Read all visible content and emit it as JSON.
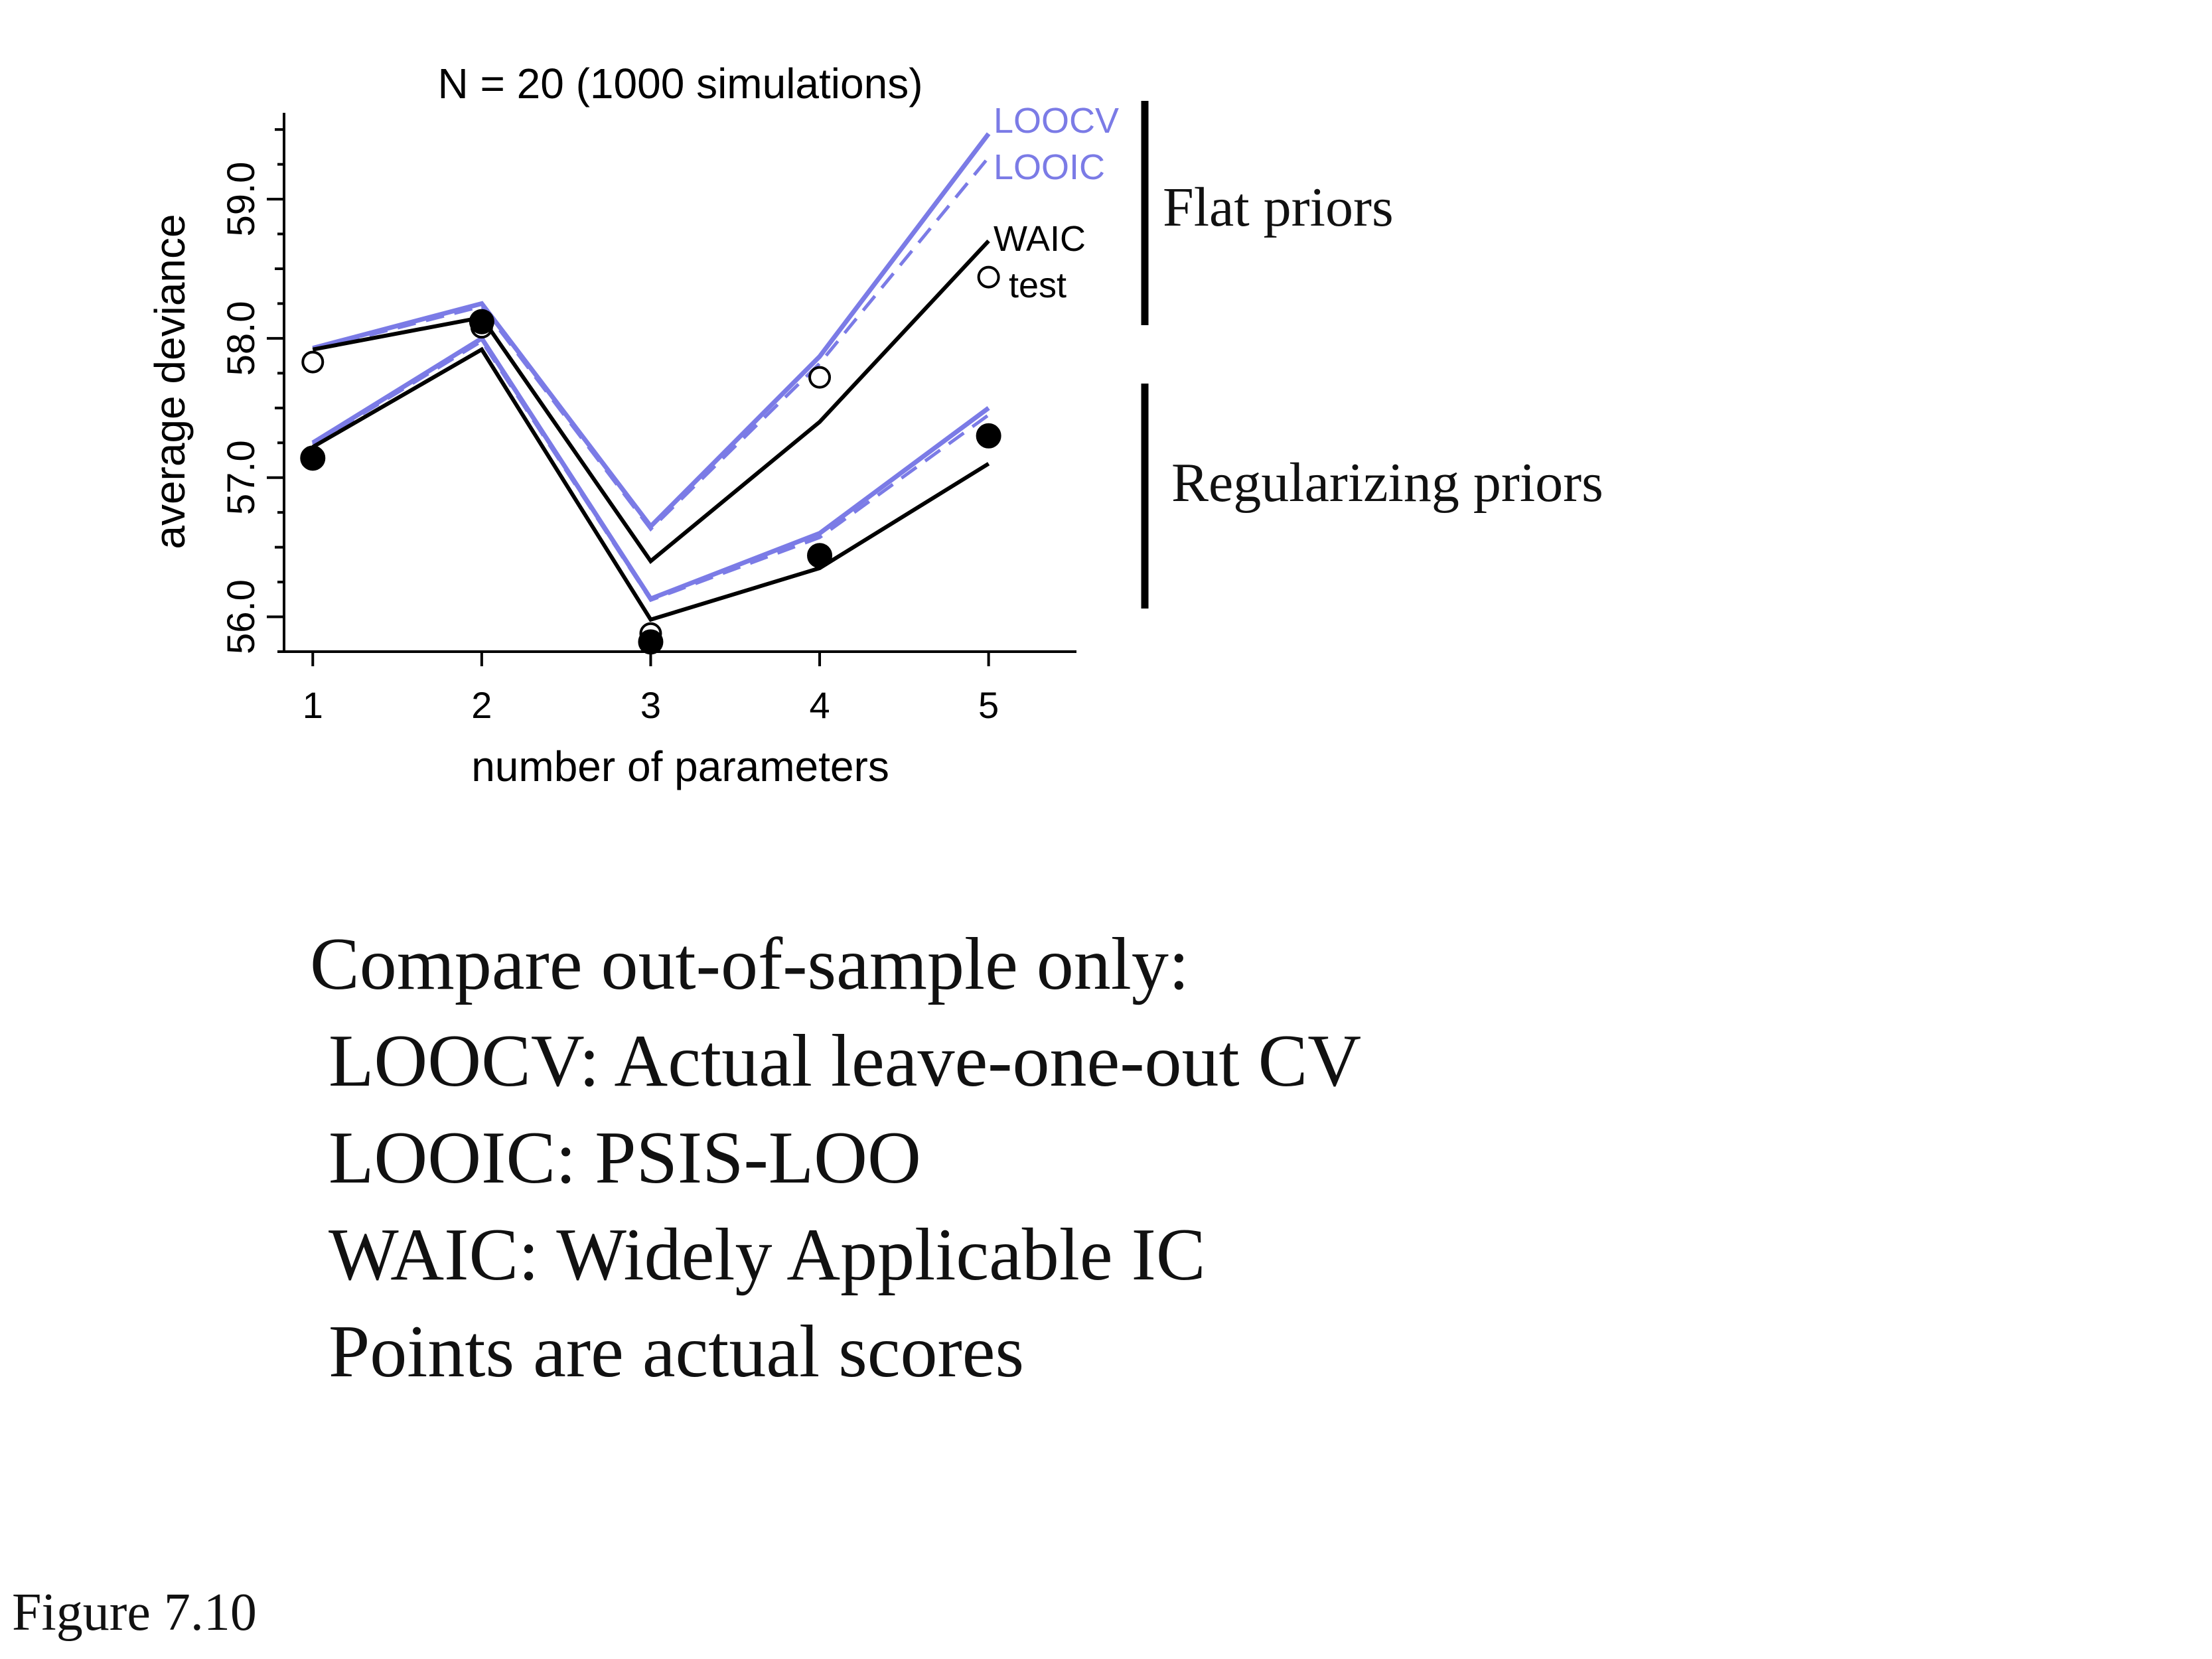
{
  "chart_data": {
    "type": "line",
    "title": "N = 20 (1000 simulations)",
    "xlabel": "number of parameters",
    "ylabel": "average deviance",
    "x": [
      1,
      2,
      3,
      4,
      5
    ],
    "xticks": [
      "1",
      "2",
      "3",
      "4",
      "5"
    ],
    "yticks": [
      56.0,
      57.0,
      58.0,
      59.0
    ],
    "ytick_labels": [
      "56.0",
      "57.0",
      "58.0",
      "59.0"
    ],
    "xlim": [
      0.83,
      5.52
    ],
    "ylim": [
      55.75,
      59.62
    ],
    "grid": false,
    "colors": {
      "loo": "#7b7be6",
      "waic": "#000000",
      "test": "#000000"
    },
    "groups": [
      {
        "label": "Flat priors",
        "series": [
          {
            "name": "LOOCV",
            "style": "solid",
            "color": "#7b7be6",
            "values": [
              57.93,
              58.25,
              56.65,
              57.87,
              59.47
            ]
          },
          {
            "name": "LOOIC",
            "style": "dashed",
            "color": "#7b7be6",
            "values": [
              57.92,
              58.23,
              56.63,
              57.82,
              59.3
            ]
          },
          {
            "name": "WAIC",
            "style": "solid",
            "color": "#000000",
            "values": [
              57.92,
              58.15,
              56.4,
              57.4,
              58.7
            ]
          },
          {
            "name": "test",
            "style": "open-points",
            "color": "#000000",
            "values": [
              57.83,
              58.08,
              55.88,
              57.72,
              58.44
            ]
          }
        ]
      },
      {
        "label": "Regularizing priors",
        "series": [
          {
            "name": "LOOCV",
            "style": "solid",
            "color": "#7b7be6",
            "values": [
              57.25,
              58.0,
              56.13,
              56.6,
              57.5
            ]
          },
          {
            "name": "LOOIC",
            "style": "dashed",
            "color": "#7b7be6",
            "values": [
              57.24,
              57.98,
              56.12,
              56.57,
              57.45
            ]
          },
          {
            "name": "WAIC",
            "style": "solid",
            "color": "#000000",
            "values": [
              57.22,
              57.92,
              55.98,
              56.35,
              57.1
            ]
          },
          {
            "name": "test",
            "style": "filled-points",
            "color": "#000000",
            "values": [
              57.14,
              58.12,
              55.82,
              56.44,
              57.3
            ]
          }
        ]
      }
    ],
    "legend_labels": [
      "LOOCV",
      "LOOIC",
      "WAIC",
      "test"
    ]
  },
  "notes": {
    "heading": "Compare out-of-sample only:",
    "lines": [
      "LOOCV: Actual leave-one-out CV",
      "LOOIC: PSIS-LOO",
      "WAIC: Widely Applicable IC",
      "Points are actual scores"
    ]
  },
  "caption": "Figure 7.10"
}
